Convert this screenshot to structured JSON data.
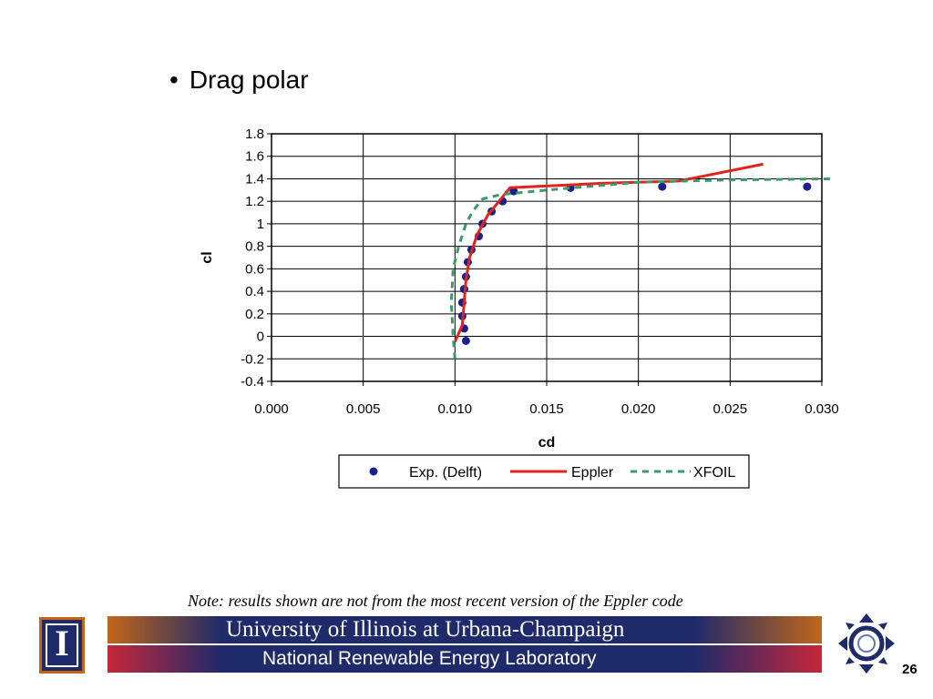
{
  "slide": {
    "bullet": "•",
    "title": "Drag polar",
    "note": "Note: results shown are not from the most recent version of the Eppler code",
    "page_number": "26"
  },
  "footer": {
    "uiuc_label": "University of Illinois at Urbana-Champaign",
    "nrel_label": "National Renewable Energy Laboratory",
    "colors": {
      "navy": "#1e2a6a",
      "orange": "#c0661a",
      "red": "#c4273a"
    }
  },
  "chart_data": {
    "type": "scatter",
    "xlabel": "cd",
    "ylabel": "cl",
    "xlim": [
      0.0,
      0.03
    ],
    "ylim": [
      -0.4,
      1.8
    ],
    "x_ticks": [
      "0.000",
      "0.005",
      "0.010",
      "0.015",
      "0.020",
      "0.025",
      "0.030"
    ],
    "y_ticks": [
      "1.8",
      "1.6",
      "1.4",
      "1.2",
      "1",
      "0.8",
      "0.6",
      "0.4",
      "0.2",
      "0",
      "-0.2",
      "-0.4"
    ],
    "grid": true,
    "legend_position": "bottom",
    "series": [
      {
        "name": "Exp. (Delft)",
        "style": "markers",
        "color": "#1a1f8c",
        "points": [
          [
            0.0106,
            -0.04
          ],
          [
            0.0105,
            0.07
          ],
          [
            0.0104,
            0.18
          ],
          [
            0.0104,
            0.3
          ],
          [
            0.0105,
            0.42
          ],
          [
            0.0106,
            0.53
          ],
          [
            0.0107,
            0.66
          ],
          [
            0.0109,
            0.77
          ],
          [
            0.0113,
            0.89
          ],
          [
            0.0115,
            1.0
          ],
          [
            0.012,
            1.11
          ],
          [
            0.0126,
            1.2
          ],
          [
            0.0132,
            1.29
          ],
          [
            0.0163,
            1.32
          ],
          [
            0.0213,
            1.33
          ],
          [
            0.0292,
            1.33
          ]
        ]
      },
      {
        "name": "Eppler",
        "style": "solid",
        "color": "#e0241c",
        "points": [
          [
            0.01,
            -0.05
          ],
          [
            0.0104,
            0.1
          ],
          [
            0.0105,
            0.3
          ],
          [
            0.0106,
            0.5
          ],
          [
            0.0108,
            0.7
          ],
          [
            0.0112,
            0.9
          ],
          [
            0.0118,
            1.08
          ],
          [
            0.0124,
            1.2
          ],
          [
            0.013,
            1.32
          ],
          [
            0.018,
            1.36
          ],
          [
            0.0222,
            1.38
          ],
          [
            0.0268,
            1.53
          ]
        ]
      },
      {
        "name": "XFOIL",
        "style": "dashed",
        "color": "#3a9a6a",
        "points": [
          [
            0.01,
            -0.2
          ],
          [
            0.0099,
            0.0
          ],
          [
            0.0098,
            0.3
          ],
          [
            0.0099,
            0.6
          ],
          [
            0.0102,
            0.8
          ],
          [
            0.0106,
            1.0
          ],
          [
            0.011,
            1.12
          ],
          [
            0.0115,
            1.22
          ],
          [
            0.0125,
            1.26
          ],
          [
            0.015,
            1.3
          ],
          [
            0.02,
            1.37
          ],
          [
            0.025,
            1.39
          ],
          [
            0.0305,
            1.4
          ]
        ]
      }
    ]
  }
}
